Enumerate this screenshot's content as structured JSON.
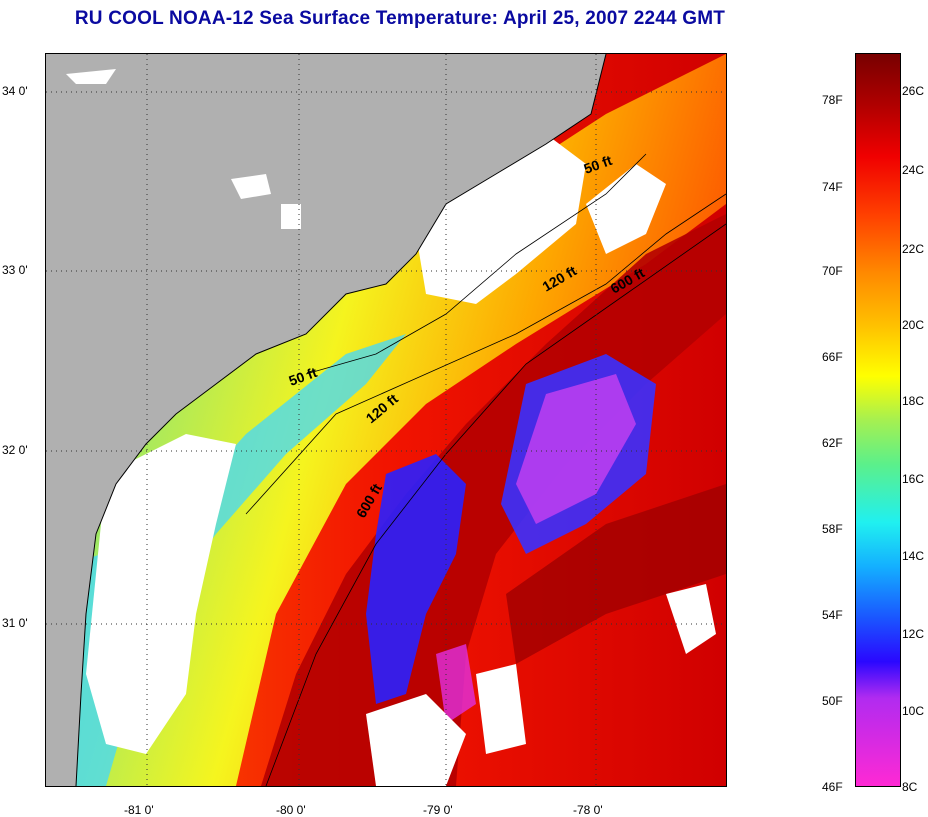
{
  "title": "RU COOL  NOAA-12  Sea Surface Temperature:  April 25, 2007 2244 GMT",
  "latitude_labels": [
    "34 0'",
    "33 0'",
    "32 0'",
    "31 0'"
  ],
  "longitude_labels": [
    "-81 0'",
    "-80 0'",
    "-79 0'",
    "-78 0'"
  ],
  "depth_contours": [
    "50 ft",
    "120 ft",
    "600 ft",
    "50 ft",
    "120 ft",
    "600 ft"
  ],
  "colorbar": {
    "fahrenheit_labels": [
      "78F",
      "74F",
      "70F",
      "66F",
      "62F",
      "58F",
      "54F",
      "50F",
      "46F"
    ],
    "celsius_labels": [
      "26C",
      "24C",
      "22C",
      "20C",
      "18C",
      "16C",
      "14C",
      "12C",
      "10C",
      "8C"
    ]
  },
  "colors": {
    "title": "#0a0aa0",
    "land": "#b0b0b0",
    "cloud": "#ffffff",
    "warm_gulf_stream": "#a00000",
    "cold_min": "#ff29d4"
  }
}
